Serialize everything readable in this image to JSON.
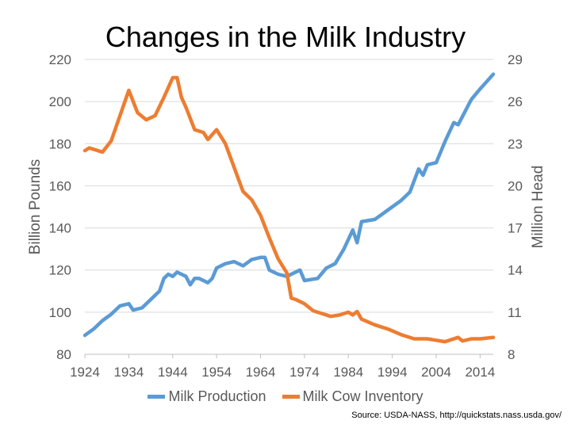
{
  "chart_data": {
    "type": "line",
    "title": "Changes in the Milk Industry",
    "xlabel": "",
    "ylabel_left": "Billion Pounds",
    "ylabel_right": "Million Head",
    "xlim": [
      1924,
      2017
    ],
    "ylim_left": [
      80,
      220
    ],
    "ylim_right": [
      8,
      29
    ],
    "x_ticks": [
      "1924",
      "1934",
      "1944",
      "1954",
      "1964",
      "1974",
      "1984",
      "1994",
      "2004",
      "2014"
    ],
    "y_ticks_left": [
      "220",
      "200",
      "180",
      "160",
      "140",
      "120",
      "100",
      "80"
    ],
    "y_ticks_right": [
      "29",
      "26",
      "23",
      "20",
      "17",
      "14",
      "11",
      "8"
    ],
    "grid": true,
    "legend": "bottom",
    "series": [
      {
        "name": "Milk Production",
        "axis": "left",
        "color": "#5b9bd5",
        "points": [
          [
            1924,
            89
          ],
          [
            1926,
            92
          ],
          [
            1928,
            96
          ],
          [
            1930,
            99
          ],
          [
            1932,
            103
          ],
          [
            1934,
            104
          ],
          [
            1935,
            101
          ],
          [
            1937,
            102
          ],
          [
            1939,
            106
          ],
          [
            1941,
            110
          ],
          [
            1942,
            116
          ],
          [
            1943,
            118
          ],
          [
            1944,
            117
          ],
          [
            1945,
            119
          ],
          [
            1947,
            117
          ],
          [
            1948,
            113
          ],
          [
            1949,
            116
          ],
          [
            1950,
            116
          ],
          [
            1952,
            114
          ],
          [
            1953,
            116
          ],
          [
            1954,
            121
          ],
          [
            1956,
            123
          ],
          [
            1958,
            124
          ],
          [
            1960,
            122
          ],
          [
            1962,
            125
          ],
          [
            1964,
            126
          ],
          [
            1965,
            126
          ],
          [
            1966,
            120
          ],
          [
            1968,
            118
          ],
          [
            1970,
            117
          ],
          [
            1973,
            120
          ],
          [
            1974,
            115
          ],
          [
            1977,
            116
          ],
          [
            1979,
            121
          ],
          [
            1981,
            123
          ],
          [
            1983,
            130
          ],
          [
            1985,
            139
          ],
          [
            1986,
            133
          ],
          [
            1987,
            143
          ],
          [
            1990,
            144
          ],
          [
            1992,
            147
          ],
          [
            1994,
            150
          ],
          [
            1996,
            153
          ],
          [
            1998,
            157
          ],
          [
            2000,
            168
          ],
          [
            2001,
            165
          ],
          [
            2002,
            170
          ],
          [
            2004,
            171
          ],
          [
            2006,
            181
          ],
          [
            2008,
            190
          ],
          [
            2009,
            189
          ],
          [
            2011,
            197
          ],
          [
            2012,
            201
          ],
          [
            2014,
            206
          ],
          [
            2017,
            213
          ]
        ]
      },
      {
        "name": "Milk Cow Inventory",
        "axis": "right",
        "color": "#ed7d31",
        "points": [
          [
            1924,
            22.5
          ],
          [
            1925,
            22.7
          ],
          [
            1928,
            22.4
          ],
          [
            1930,
            23.2
          ],
          [
            1932,
            25
          ],
          [
            1934,
            26.8
          ],
          [
            1936,
            25.2
          ],
          [
            1938,
            24.7
          ],
          [
            1940,
            25.0
          ],
          [
            1942,
            26.3
          ],
          [
            1944,
            27.7
          ],
          [
            1945,
            27.7
          ],
          [
            1946,
            26.3
          ],
          [
            1947,
            25.6
          ],
          [
            1949,
            24.0
          ],
          [
            1951,
            23.8
          ],
          [
            1952,
            23.3
          ],
          [
            1954,
            24.0
          ],
          [
            1956,
            23.0
          ],
          [
            1958,
            21.3
          ],
          [
            1960,
            19.6
          ],
          [
            1962,
            19.0
          ],
          [
            1964,
            17.9
          ],
          [
            1966,
            16.3
          ],
          [
            1968,
            14.8
          ],
          [
            1970,
            13.8
          ],
          [
            1971,
            12.0
          ],
          [
            1972,
            11.9
          ],
          [
            1974,
            11.6
          ],
          [
            1976,
            11.1
          ],
          [
            1978,
            10.9
          ],
          [
            1980,
            10.7
          ],
          [
            1982,
            10.8
          ],
          [
            1984,
            11.0
          ],
          [
            1985,
            10.8
          ],
          [
            1986,
            11.05
          ],
          [
            1987,
            10.5
          ],
          [
            1990,
            10.1
          ],
          [
            1993,
            9.8
          ],
          [
            1996,
            9.4
          ],
          [
            1999,
            9.1
          ],
          [
            2002,
            9.1
          ],
          [
            2004,
            9.0
          ],
          [
            2006,
            8.9
          ],
          [
            2009,
            9.2
          ],
          [
            2010,
            8.95
          ],
          [
            2012,
            9.1
          ],
          [
            2014,
            9.1
          ],
          [
            2017,
            9.2
          ]
        ]
      }
    ],
    "source": "Source: USDA-NASS, http://quickstats.nass.usda.gov/"
  }
}
